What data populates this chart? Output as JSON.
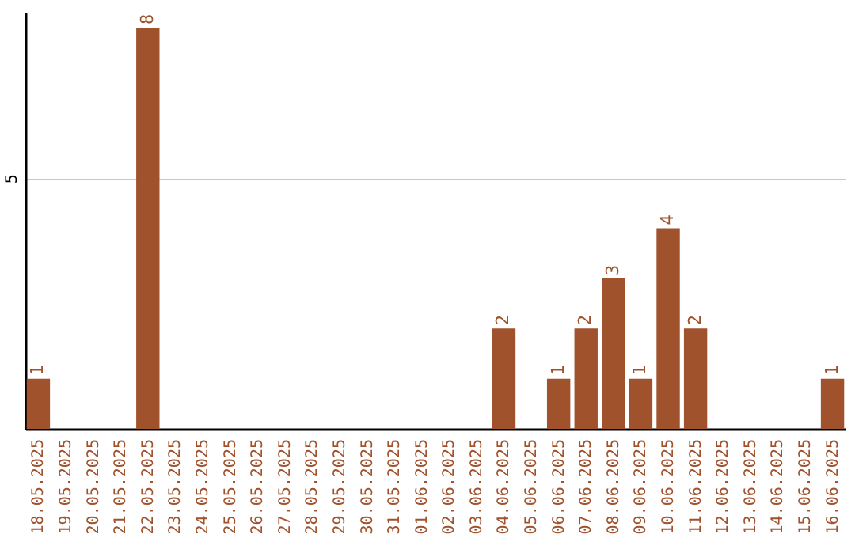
{
  "chart_data": {
    "type": "bar",
    "categories": [
      "18.05.2025",
      "19.05.2025",
      "20.05.2025",
      "21.05.2025",
      "22.05.2025",
      "23.05.2025",
      "24.05.2025",
      "25.05.2025",
      "26.05.2025",
      "27.05.2025",
      "28.05.2025",
      "29.05.2025",
      "30.05.2025",
      "31.05.2025",
      "01.06.2025",
      "02.06.2025",
      "03.06.2025",
      "04.06.2025",
      "05.06.2025",
      "06.06.2025",
      "07.06.2025",
      "08.06.2025",
      "09.06.2025",
      "10.06.2025",
      "11.06.2025",
      "12.06.2025",
      "13.06.2025",
      "14.06.2025",
      "15.06.2025",
      "16.06.2025"
    ],
    "values": [
      1,
      0,
      0,
      0,
      8,
      0,
      0,
      0,
      0,
      0,
      0,
      0,
      0,
      0,
      0,
      0,
      0,
      2,
      0,
      1,
      2,
      3,
      1,
      4,
      2,
      0,
      0,
      0,
      0,
      1
    ],
    "value_labels": [
      "1",
      null,
      null,
      null,
      "8",
      null,
      null,
      null,
      null,
      null,
      null,
      null,
      null,
      null,
      null,
      null,
      null,
      "2",
      null,
      "1",
      "2",
      "3",
      "1",
      "4",
      "2",
      null,
      null,
      null,
      null,
      "1"
    ],
    "color": "#a0522d",
    "ylim": [
      0,
      8.3
    ],
    "yticks": [
      5
    ],
    "grid": "y"
  }
}
